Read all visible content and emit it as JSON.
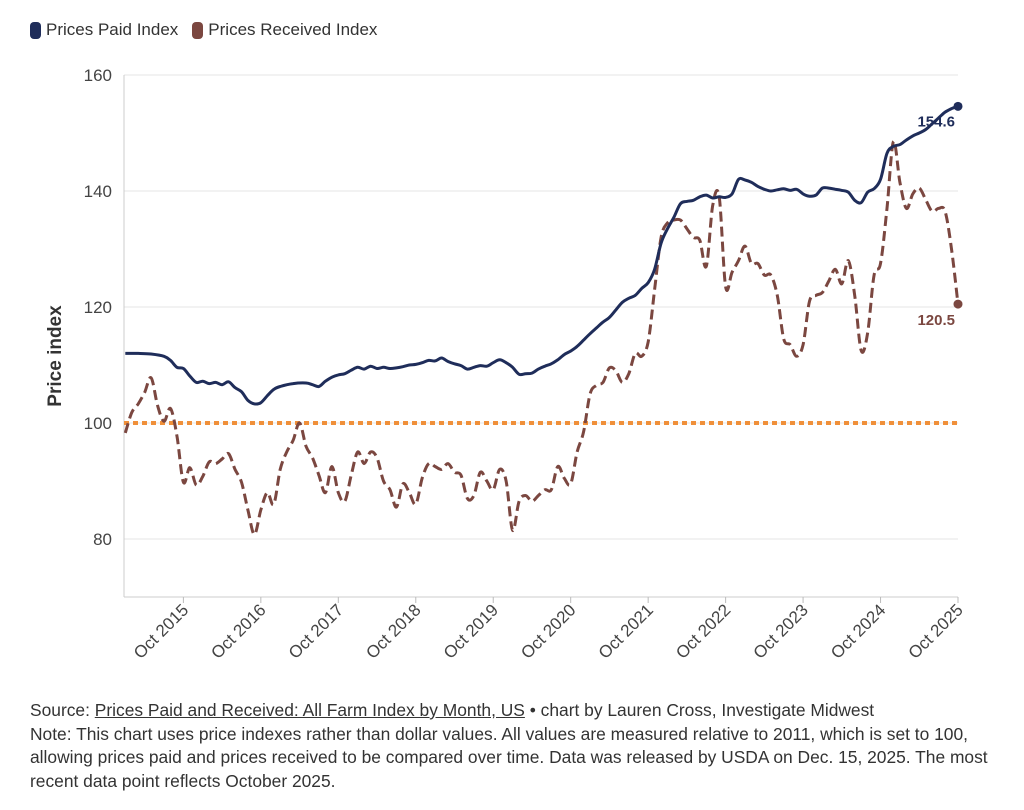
{
  "legend": [
    {
      "name": "Prices Paid Index",
      "color": "#1f2d5a"
    },
    {
      "name": "Prices Received Index",
      "color": "#7b4740"
    }
  ],
  "chart_data": {
    "type": "line",
    "ylabel": "Price index",
    "ylim": [
      70,
      160
    ],
    "yticks": [
      80,
      100,
      120,
      140,
      160
    ],
    "xlim": [
      "2015-01",
      "2025-10"
    ],
    "xticks": [
      "Oct 2015",
      "Oct 2016",
      "Oct 2017",
      "Oct 2018",
      "Oct 2019",
      "Oct 2020",
      "Oct 2021",
      "Oct 2022",
      "Oct 2023",
      "Oct 2024",
      "Oct 2025"
    ],
    "reference_line": {
      "value": 100,
      "color": "#f0903a",
      "style": "dotted"
    },
    "grid": "horizontal",
    "series": [
      {
        "name": "Prices Paid Index",
        "color": "#1f2d5a",
        "style": "solid",
        "end_label": "154.6",
        "points": [
          [
            "2015-01",
            112.0
          ],
          [
            "2015-03",
            112.0
          ],
          [
            "2015-05",
            111.9
          ],
          [
            "2015-07",
            111.5
          ],
          [
            "2015-08",
            110.8
          ],
          [
            "2015-09",
            109.6
          ],
          [
            "2015-10",
            109.4
          ],
          [
            "2015-11",
            108.1
          ],
          [
            "2015-12",
            107.0
          ],
          [
            "2016-01",
            107.2
          ],
          [
            "2016-02",
            106.8
          ],
          [
            "2016-03",
            107.0
          ],
          [
            "2016-04",
            106.6
          ],
          [
            "2016-05",
            107.1
          ],
          [
            "2016-06",
            106.1
          ],
          [
            "2016-07",
            105.4
          ],
          [
            "2016-08",
            103.9
          ],
          [
            "2016-09",
            103.3
          ],
          [
            "2016-10",
            103.5
          ],
          [
            "2016-11",
            104.7
          ],
          [
            "2016-12",
            105.8
          ],
          [
            "2017-01",
            106.3
          ],
          [
            "2017-03",
            106.8
          ],
          [
            "2017-05",
            106.9
          ],
          [
            "2017-06",
            106.6
          ],
          [
            "2017-07",
            106.3
          ],
          [
            "2017-08",
            107.2
          ],
          [
            "2017-09",
            107.9
          ],
          [
            "2017-10",
            108.3
          ],
          [
            "2017-11",
            108.5
          ],
          [
            "2017-12",
            109.1
          ],
          [
            "2018-01",
            109.6
          ],
          [
            "2018-02",
            109.3
          ],
          [
            "2018-03",
            109.8
          ],
          [
            "2018-04",
            109.4
          ],
          [
            "2018-05",
            109.6
          ],
          [
            "2018-06",
            109.4
          ],
          [
            "2018-07",
            109.5
          ],
          [
            "2018-08",
            109.7
          ],
          [
            "2018-09",
            110.0
          ],
          [
            "2018-10",
            110.1
          ],
          [
            "2018-11",
            110.4
          ],
          [
            "2018-12",
            110.8
          ],
          [
            "2019-01",
            110.7
          ],
          [
            "2019-02",
            111.2
          ],
          [
            "2019-03",
            110.6
          ],
          [
            "2019-04",
            110.2
          ],
          [
            "2019-05",
            109.9
          ],
          [
            "2019-06",
            109.3
          ],
          [
            "2019-07",
            109.6
          ],
          [
            "2019-08",
            109.9
          ],
          [
            "2019-09",
            109.8
          ],
          [
            "2019-10",
            110.4
          ],
          [
            "2019-11",
            110.9
          ],
          [
            "2019-12",
            110.4
          ],
          [
            "2020-01",
            109.6
          ],
          [
            "2020-02",
            108.4
          ],
          [
            "2020-03",
            108.5
          ],
          [
            "2020-04",
            108.6
          ],
          [
            "2020-05",
            109.3
          ],
          [
            "2020-06",
            109.8
          ],
          [
            "2020-07",
            110.2
          ],
          [
            "2020-08",
            110.9
          ],
          [
            "2020-09",
            111.8
          ],
          [
            "2020-10",
            112.4
          ],
          [
            "2020-11",
            113.2
          ],
          [
            "2020-12",
            114.3
          ],
          [
            "2021-01",
            115.4
          ],
          [
            "2021-02",
            116.4
          ],
          [
            "2021-03",
            117.4
          ],
          [
            "2021-04",
            118.2
          ],
          [
            "2021-05",
            119.5
          ],
          [
            "2021-06",
            120.8
          ],
          [
            "2021-07",
            121.5
          ],
          [
            "2021-08",
            122.0
          ],
          [
            "2021-09",
            123.2
          ],
          [
            "2021-10",
            124.2
          ],
          [
            "2021-11",
            126.5
          ],
          [
            "2021-12",
            131.0
          ],
          [
            "2022-01",
            133.5
          ],
          [
            "2022-02",
            135.5
          ],
          [
            "2022-03",
            137.8
          ],
          [
            "2022-04",
            138.2
          ],
          [
            "2022-05",
            138.4
          ],
          [
            "2022-06",
            139.0
          ],
          [
            "2022-07",
            139.3
          ],
          [
            "2022-08",
            138.8
          ],
          [
            "2022-09",
            139.0
          ],
          [
            "2022-10",
            138.9
          ],
          [
            "2022-11",
            139.5
          ],
          [
            "2022-12",
            142.0
          ],
          [
            "2023-01",
            141.9
          ],
          [
            "2023-02",
            141.5
          ],
          [
            "2023-03",
            140.8
          ],
          [
            "2023-04",
            140.3
          ],
          [
            "2023-05",
            140.0
          ],
          [
            "2023-06",
            140.2
          ],
          [
            "2023-07",
            140.4
          ],
          [
            "2023-08",
            140.1
          ],
          [
            "2023-09",
            140.3
          ],
          [
            "2023-10",
            139.5
          ],
          [
            "2023-11",
            139.1
          ],
          [
            "2023-12",
            139.3
          ],
          [
            "2024-01",
            140.5
          ],
          [
            "2024-02",
            140.5
          ],
          [
            "2024-03",
            140.3
          ],
          [
            "2024-04",
            140.1
          ],
          [
            "2024-05",
            139.8
          ],
          [
            "2024-06",
            138.4
          ],
          [
            "2024-07",
            138.0
          ],
          [
            "2024-08",
            139.8
          ],
          [
            "2024-09",
            140.4
          ],
          [
            "2024-10",
            142.0
          ],
          [
            "2024-11",
            146.5
          ],
          [
            "2024-12",
            147.7
          ],
          [
            "2025-01",
            148.0
          ],
          [
            "2025-02",
            148.8
          ],
          [
            "2025-03",
            149.5
          ],
          [
            "2025-04",
            150.0
          ],
          [
            "2025-05",
            150.6
          ],
          [
            "2025-06",
            151.6
          ],
          [
            "2025-07",
            152.6
          ],
          [
            "2025-08",
            153.6
          ],
          [
            "2025-09",
            154.2
          ],
          [
            "2025-10",
            154.6
          ]
        ]
      },
      {
        "name": "Prices Received Index",
        "color": "#7b4740",
        "style": "dashed",
        "end_label": "120.5",
        "points": [
          [
            "2015-01",
            98.3
          ],
          [
            "2015-02",
            101.8
          ],
          [
            "2015-03",
            103.3
          ],
          [
            "2015-04",
            105.3
          ],
          [
            "2015-05",
            107.8
          ],
          [
            "2015-06",
            103.0
          ],
          [
            "2015-07",
            100.3
          ],
          [
            "2015-08",
            102.5
          ],
          [
            "2015-09",
            97.8
          ],
          [
            "2015-10",
            89.8
          ],
          [
            "2015-11",
            92.3
          ],
          [
            "2015-12",
            89.3
          ],
          [
            "2016-01",
            90.8
          ],
          [
            "2016-02",
            93.3
          ],
          [
            "2016-03",
            93.0
          ],
          [
            "2016-04",
            93.8
          ],
          [
            "2016-05",
            94.7
          ],
          [
            "2016-06",
            92.0
          ],
          [
            "2016-07",
            89.8
          ],
          [
            "2016-08",
            85.0
          ],
          [
            "2016-09",
            80.8
          ],
          [
            "2016-10",
            85.0
          ],
          [
            "2016-11",
            88.0
          ],
          [
            "2016-12",
            86.0
          ],
          [
            "2017-01",
            92.0
          ],
          [
            "2017-02",
            95.0
          ],
          [
            "2017-03",
            97.0
          ],
          [
            "2017-04",
            100.0
          ],
          [
            "2017-05",
            96.0
          ],
          [
            "2017-06",
            94.0
          ],
          [
            "2017-07",
            91.0
          ],
          [
            "2017-08",
            88.0
          ],
          [
            "2017-09",
            92.5
          ],
          [
            "2017-10",
            88.0
          ],
          [
            "2017-11",
            86.5
          ],
          [
            "2017-12",
            91.0
          ],
          [
            "2018-01",
            95.0
          ],
          [
            "2018-02",
            93.0
          ],
          [
            "2018-03",
            95.0
          ],
          [
            "2018-04",
            94.0
          ],
          [
            "2018-05",
            90.0
          ],
          [
            "2018-06",
            88.5
          ],
          [
            "2018-07",
            85.5
          ],
          [
            "2018-08",
            89.5
          ],
          [
            "2018-09",
            88.0
          ],
          [
            "2018-10",
            86.0
          ],
          [
            "2018-11",
            90.5
          ],
          [
            "2018-12",
            93.0
          ],
          [
            "2019-01",
            92.5
          ],
          [
            "2019-02",
            92.0
          ],
          [
            "2019-03",
            93.0
          ],
          [
            "2019-04",
            91.5
          ],
          [
            "2019-05",
            91.0
          ],
          [
            "2019-06",
            87.0
          ],
          [
            "2019-07",
            87.5
          ],
          [
            "2019-08",
            91.5
          ],
          [
            "2019-09",
            90.0
          ],
          [
            "2019-10",
            88.5
          ],
          [
            "2019-11",
            92.0
          ],
          [
            "2019-12",
            90.0
          ],
          [
            "2020-01",
            81.5
          ],
          [
            "2020-02",
            86.5
          ],
          [
            "2020-03",
            87.5
          ],
          [
            "2020-04",
            86.5
          ],
          [
            "2020-05",
            87.5
          ],
          [
            "2020-06",
            88.5
          ],
          [
            "2020-07",
            88.5
          ],
          [
            "2020-08",
            92.5
          ],
          [
            "2020-09",
            90.5
          ],
          [
            "2020-10",
            89.5
          ],
          [
            "2020-11",
            95.0
          ],
          [
            "2020-12",
            98.5
          ],
          [
            "2021-01",
            105.0
          ],
          [
            "2021-02",
            106.5
          ],
          [
            "2021-03",
            107.0
          ],
          [
            "2021-04",
            109.5
          ],
          [
            "2021-05",
            109.0
          ],
          [
            "2021-06",
            107.0
          ],
          [
            "2021-07",
            108.5
          ],
          [
            "2021-08",
            112.0
          ],
          [
            "2021-09",
            111.5
          ],
          [
            "2021-10",
            114.0
          ],
          [
            "2021-11",
            123.0
          ],
          [
            "2021-12",
            132.0
          ],
          [
            "2022-01",
            134.5
          ],
          [
            "2022-02",
            135.0
          ],
          [
            "2022-03",
            135.0
          ],
          [
            "2022-04",
            133.5
          ],
          [
            "2022-05",
            132.0
          ],
          [
            "2022-06",
            131.5
          ],
          [
            "2022-07",
            127.0
          ],
          [
            "2022-08",
            137.5
          ],
          [
            "2022-09",
            139.0
          ],
          [
            "2022-10",
            123.5
          ],
          [
            "2022-11",
            126.0
          ],
          [
            "2022-12",
            128.0
          ],
          [
            "2023-01",
            130.5
          ],
          [
            "2023-02",
            127.5
          ],
          [
            "2023-03",
            127.5
          ],
          [
            "2023-04",
            125.5
          ],
          [
            "2023-05",
            125.5
          ],
          [
            "2023-06",
            122.0
          ],
          [
            "2023-07",
            114.5
          ],
          [
            "2023-08",
            113.5
          ],
          [
            "2023-09",
            111.5
          ],
          [
            "2023-10",
            113.5
          ],
          [
            "2023-11",
            121.0
          ],
          [
            "2023-12",
            122.0
          ],
          [
            "2024-01",
            122.5
          ],
          [
            "2024-02",
            124.5
          ],
          [
            "2024-03",
            126.5
          ],
          [
            "2024-04",
            124.0
          ],
          [
            "2024-05",
            128.0
          ],
          [
            "2024-06",
            122.0
          ],
          [
            "2024-07",
            112.5
          ],
          [
            "2024-08",
            115.5
          ],
          [
            "2024-09",
            125.5
          ],
          [
            "2024-10",
            127.5
          ],
          [
            "2024-11",
            137.0
          ],
          [
            "2024-12",
            148.5
          ],
          [
            "2025-01",
            141.5
          ],
          [
            "2025-02",
            137.0
          ],
          [
            "2025-03",
            139.5
          ],
          [
            "2025-04",
            140.5
          ],
          [
            "2025-05",
            138.5
          ],
          [
            "2025-06",
            136.5
          ],
          [
            "2025-07",
            137.0
          ],
          [
            "2025-08",
            136.5
          ],
          [
            "2025-09",
            130.0
          ],
          [
            "2025-10",
            120.5
          ]
        ]
      }
    ]
  },
  "footer": {
    "source_prefix": "Source: ",
    "source_link": "Prices Paid and Received: All Farm Index by Month, US",
    "source_suffix": " • chart by Lauren Cross, Investigate Midwest",
    "note": "Note: This chart uses price indexes rather than dollar values. All values are measured relative to 2011, which is set to 100, allowing prices paid and prices received to be compared over time. Data was released by USDA on Dec. 15, 2025. The most recent data point reflects October 2025."
  }
}
